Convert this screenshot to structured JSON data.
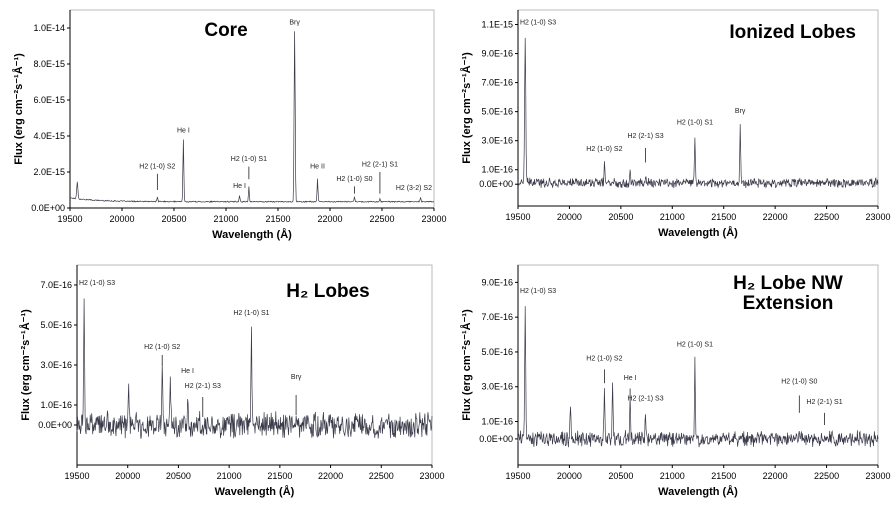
{
  "chart_data": [
    {
      "type": "line",
      "title": "Core",
      "xlabel": "Wavelength (Å)",
      "ylabel": "Flux (erg cm⁻²s⁻¹Å⁻¹)",
      "xlim": [
        19500,
        23000
      ],
      "ylim": [
        0,
        1.1e-14
      ],
      "xticks": [
        19500,
        20000,
        20500,
        21000,
        21500,
        22000,
        22500,
        23000
      ],
      "yticks": [
        "0.0E+00",
        "2.0E-15",
        "4.0E-15",
        "6.0E-15",
        "8.0E-15",
        "1.0E-14"
      ],
      "ytick_values": [
        0,
        2e-15,
        4e-15,
        6e-15,
        8e-15,
        1e-14
      ],
      "legend": "none",
      "grid": false,
      "continuum": 3.5e-16,
      "noise": 2.5e-17,
      "lines": [
        {
          "x": 19570,
          "y": 1.3e-15,
          "w": 8
        },
        {
          "x": 20340,
          "y": 6e-16,
          "w": 6
        },
        {
          "x": 20590,
          "y": 3.8e-15,
          "w": 6
        },
        {
          "x": 21130,
          "y": 7e-16,
          "w": 6
        },
        {
          "x": 21220,
          "y": 1.2e-15,
          "w": 6
        },
        {
          "x": 21660,
          "y": 9.8e-15,
          "w": 7
        },
        {
          "x": 21880,
          "y": 1.6e-15,
          "w": 6
        },
        {
          "x": 22235,
          "y": 6e-16,
          "w": 6
        },
        {
          "x": 22480,
          "y": 5e-16,
          "w": 6
        },
        {
          "x": 22870,
          "y": 6e-16,
          "w": 6
        }
      ],
      "annotations": [
        {
          "text": "H2 (1-0) S2",
          "x": 20340,
          "y": 2.2e-15
        },
        {
          "text": "He I",
          "x": 20590,
          "y": 4.2e-15
        },
        {
          "text": "He I",
          "x": 21130,
          "y": 1.1e-15
        },
        {
          "text": "H2 (1-0) S1",
          "x": 21220,
          "y": 2.6e-15
        },
        {
          "text": "Brγ",
          "x": 21660,
          "y": 1.02e-14
        },
        {
          "text": "He II",
          "x": 21880,
          "y": 2.2e-15
        },
        {
          "text": "H2 (1-0) S0",
          "x": 22235,
          "y": 1.5e-15
        },
        {
          "text": "H2 (2-1) S1",
          "x": 22480,
          "y": 2.3e-15
        },
        {
          "text": "H2 (3-2) S2",
          "x": 22870,
          "y": 1e-15
        }
      ],
      "markers": [
        {
          "x": 20340,
          "y0": 1e-15,
          "y1": 1.9e-15
        },
        {
          "x": 21220,
          "y0": 1.6e-15,
          "y1": 2.3e-15
        },
        {
          "x": 22235,
          "y0": 8e-16,
          "y1": 1.2e-15
        },
        {
          "x": 22480,
          "y0": 8e-16,
          "y1": 2e-15
        },
        {
          "x": 22870,
          "y0": 8e-16,
          "y1": 8e-16
        }
      ]
    },
    {
      "type": "line",
      "title": "Ionized Lobes",
      "xlabel": "Wavelength (Å)",
      "ylabel": "Flux (erg cm⁻²s⁻¹Å⁻¹)",
      "xlim": [
        19500,
        23000
      ],
      "ylim": [
        -1.5e-16,
        1.2e-15
      ],
      "xticks": [
        19500,
        20000,
        20500,
        21000,
        21500,
        22000,
        22500,
        23000
      ],
      "yticks": [
        "0.0E+00",
        "1.0E-16",
        "3.0E-16",
        "5.0E-16",
        "7.0E-16",
        "9.0E-16",
        "1.1E-15"
      ],
      "ytick_values": [
        0,
        1e-16,
        3e-16,
        5e-16,
        7e-16,
        9e-16,
        1.1e-15
      ],
      "legend": "none",
      "grid": false,
      "continuum": 1e-17,
      "noise": 2.5e-17,
      "lines": [
        {
          "x": 19570,
          "y": 1.02e-15,
          "w": 8
        },
        {
          "x": 20340,
          "y": 1.6e-16,
          "w": 6
        },
        {
          "x": 20590,
          "y": 1e-16,
          "w": 6
        },
        {
          "x": 20740,
          "y": 6e-17,
          "w": 6
        },
        {
          "x": 21220,
          "y": 3.4e-16,
          "w": 6
        },
        {
          "x": 21660,
          "y": 4.2e-16,
          "w": 6
        }
      ],
      "annotations": [
        {
          "text": "H2 (1-0) S3",
          "x": 19570,
          "y": 1.1e-15
        },
        {
          "text": "H2 (1-0) S2",
          "x": 20340,
          "y": 2.3e-16
        },
        {
          "text": "H2 (2-1) S3",
          "x": 20740,
          "y": 3.2e-16
        },
        {
          "text": "H2 (1-0) S1",
          "x": 21220,
          "y": 4.1e-16
        },
        {
          "text": "Brγ",
          "x": 21660,
          "y": 4.9e-16
        }
      ],
      "markers": [
        {
          "x": 20740,
          "y0": 1.5e-16,
          "y1": 2.5e-16
        }
      ]
    },
    {
      "type": "line",
      "title": "H₂ Lobes",
      "xlabel": "Wavelength (Å)",
      "ylabel": "Flux (erg cm⁻²s⁻¹Å⁻¹)",
      "xlim": [
        19500,
        23000
      ],
      "ylim": [
        -2e-16,
        8e-16
      ],
      "xticks": [
        19500,
        20000,
        20500,
        21000,
        21500,
        22000,
        22500,
        23000
      ],
      "yticks": [
        "0.0E+00",
        "1.0E-16",
        "3.0E-16",
        "5.0E-16",
        "7.0E-16"
      ],
      "ytick_values": [
        0,
        1e-16,
        3e-16,
        5e-16,
        7e-16
      ],
      "legend": "none",
      "grid": false,
      "continuum": 0.0,
      "noise": 5e-17,
      "lines": [
        {
          "x": 19570,
          "y": 6.1e-16,
          "w": 7
        },
        {
          "x": 20010,
          "y": 1.5e-16,
          "w": 6
        },
        {
          "x": 20340,
          "y": 2.8e-16,
          "w": 6
        },
        {
          "x": 20420,
          "y": 2.6e-16,
          "w": 6
        },
        {
          "x": 20590,
          "y": 1.8e-16,
          "w": 6
        },
        {
          "x": 21220,
          "y": 4.7e-16,
          "w": 6
        }
      ],
      "annotations": [
        {
          "text": "H2 (1-0) S3",
          "x": 19570,
          "y": 7e-16
        },
        {
          "text": "H2 (1-0) S2",
          "x": 20340,
          "y": 3.8e-16
        },
        {
          "text": "He I",
          "x": 20590,
          "y": 2.6e-16
        },
        {
          "text": "H2 (2-1) S3",
          "x": 20740,
          "y": 1.85e-16
        },
        {
          "text": "H2 (1-0) S1",
          "x": 21220,
          "y": 5.5e-16
        },
        {
          "text": "Brγ",
          "x": 21660,
          "y": 2.3e-16
        }
      ],
      "markers": [
        {
          "x": 20340,
          "y0": 3e-16,
          "y1": 3.5e-16
        },
        {
          "x": 20740,
          "y0": 4e-17,
          "y1": 1.4e-16
        },
        {
          "x": 21660,
          "y0": 5e-17,
          "y1": 1.5e-16
        }
      ]
    },
    {
      "type": "line",
      "title": "H₂ Lobe NW Extension",
      "xlabel": "Wavelength (Å)",
      "ylabel": "Flux (erg cm⁻²s⁻¹Å⁻¹)",
      "xlim": [
        19500,
        23000
      ],
      "ylim": [
        -1.5e-16,
        1e-15
      ],
      "xticks": [
        19500,
        20000,
        20500,
        21000,
        21500,
        22000,
        22500,
        23000
      ],
      "yticks": [
        "0.0E+00",
        "1.0E-16",
        "3.0E-16",
        "5.0E-16",
        "7.0E-16",
        "9.0E-16"
      ],
      "ytick_values": [
        0,
        1e-16,
        3e-16,
        5e-16,
        7e-16,
        9e-16
      ],
      "legend": "none",
      "grid": false,
      "continuum": 0.0,
      "noise": 3.5e-17,
      "lines": [
        {
          "x": 19570,
          "y": 7.5e-16,
          "w": 7
        },
        {
          "x": 20010,
          "y": 1.8e-16,
          "w": 6
        },
        {
          "x": 20340,
          "y": 2.9e-16,
          "w": 6
        },
        {
          "x": 20420,
          "y": 3.2e-16,
          "w": 6
        },
        {
          "x": 20590,
          "y": 2.2e-16,
          "w": 6
        },
        {
          "x": 20740,
          "y": 1.6e-16,
          "w": 6
        },
        {
          "x": 21220,
          "y": 4.5e-16,
          "w": 6
        }
      ],
      "annotations": [
        {
          "text": "H2 (1-0) S3",
          "x": 19570,
          "y": 8.4e-16
        },
        {
          "text": "H2 (1-0) S2",
          "x": 20340,
          "y": 4.5e-16
        },
        {
          "text": "He I",
          "x": 20590,
          "y": 3.4e-16
        },
        {
          "text": "H2 (2-1) S3",
          "x": 20740,
          "y": 2.2e-16
        },
        {
          "text": "H2 (1-0) S1",
          "x": 21220,
          "y": 5.3e-16
        },
        {
          "text": "H2 (1-0) S0",
          "x": 22235,
          "y": 3.2e-16
        },
        {
          "text": "H2 (2-1) S1",
          "x": 22480,
          "y": 2e-16
        }
      ],
      "markers": [
        {
          "x": 20340,
          "y0": 3.2e-16,
          "y1": 4e-16
        },
        {
          "x": 20590,
          "y0": 2.4e-16,
          "y1": 2.9e-16
        },
        {
          "x": 22235,
          "y0": 1.5e-16,
          "y1": 2.5e-16
        },
        {
          "x": 22480,
          "y0": 8e-17,
          "y1": 1.5e-16
        }
      ]
    }
  ],
  "colors": {
    "spectrum": "#3a3a4a",
    "axes": "#000000",
    "marker": "#222222"
  }
}
